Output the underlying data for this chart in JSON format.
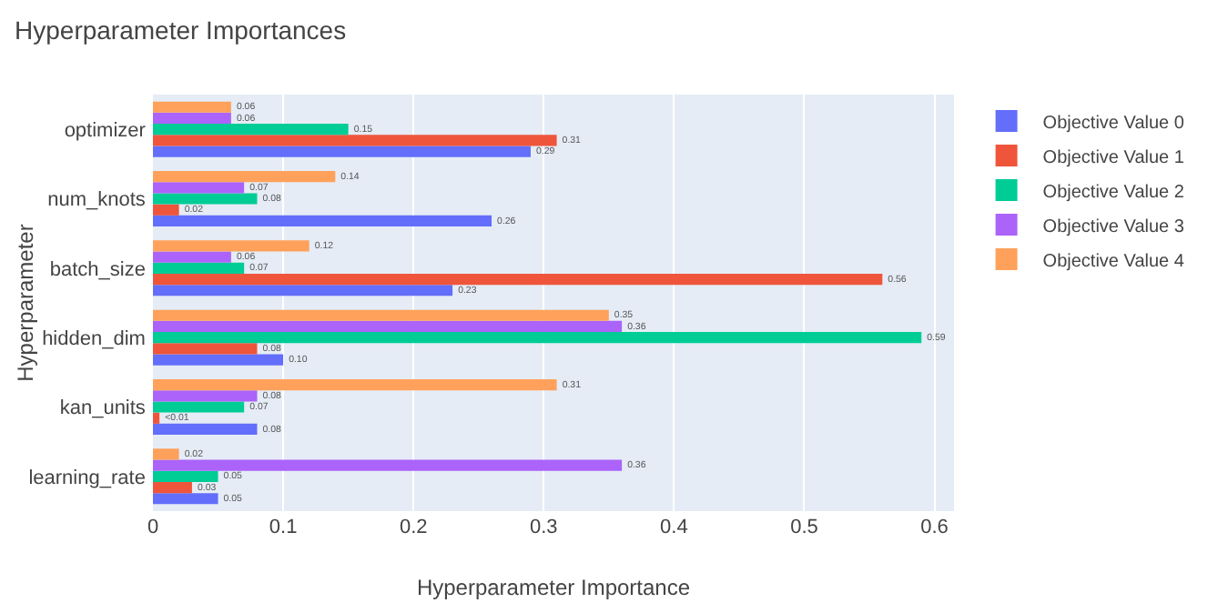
{
  "chart_data": {
    "type": "bar",
    "orientation": "horizontal",
    "title": "Hyperparameter Importances",
    "xlabel": "Hyperparameter Importance",
    "ylabel": "Hyperparameter",
    "categories": [
      "optimizer",
      "num_knots",
      "batch_size",
      "hidden_dim",
      "kan_units",
      "learning_rate"
    ],
    "series": [
      {
        "name": "Objective Value 0",
        "color": "#636efa",
        "values": [
          0.29,
          0.26,
          0.23,
          0.1,
          0.08,
          0.05
        ],
        "value_labels": [
          "0.29",
          "0.26",
          "0.23",
          "0.10",
          "0.08",
          "0.05"
        ]
      },
      {
        "name": "Objective Value 1",
        "color": "#ef553b",
        "values": [
          0.31,
          0.02,
          0.56,
          0.08,
          0.005,
          0.03
        ],
        "value_labels": [
          "0.31",
          "0.02",
          "0.56",
          "0.08",
          "<0.01",
          "0.03"
        ]
      },
      {
        "name": "Objective Value 2",
        "color": "#00cc96",
        "values": [
          0.15,
          0.08,
          0.07,
          0.59,
          0.07,
          0.05
        ],
        "value_labels": [
          "0.15",
          "0.08",
          "0.07",
          "0.59",
          "0.07",
          "0.05"
        ]
      },
      {
        "name": "Objective Value 3",
        "color": "#ab63fa",
        "values": [
          0.06,
          0.07,
          0.06,
          0.36,
          0.08,
          0.36
        ],
        "value_labels": [
          "0.06",
          "0.07",
          "0.06",
          "0.36",
          "0.08",
          "0.36"
        ]
      },
      {
        "name": "Objective Value 4",
        "color": "#ffa15a",
        "values": [
          0.06,
          0.14,
          0.12,
          0.35,
          0.31,
          0.02
        ],
        "value_labels": [
          "0.06",
          "0.14",
          "0.12",
          "0.35",
          "0.31",
          "0.02"
        ]
      }
    ],
    "xlim": [
      0,
      0.615
    ],
    "xticks": [
      0,
      0.1,
      0.2,
      0.3,
      0.4,
      0.5,
      0.6
    ],
    "grid": "x",
    "legend": "top right"
  }
}
